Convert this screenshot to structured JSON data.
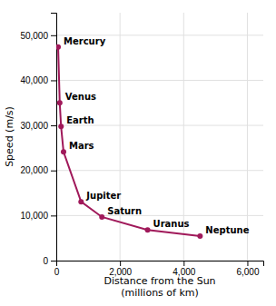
{
  "chart_data": {
    "type": "line",
    "xlabel": "Distance from the Sun\n(millions of km)",
    "ylabel": "Speed (m/s)",
    "x": [
      57.9,
      108.2,
      149.6,
      227.9,
      778.5,
      1432,
      2867,
      4515
    ],
    "series": [
      {
        "color": "#a0195a",
        "marker": "circle",
        "line_style": "solid",
        "values": [
          47400,
          35020,
          29780,
          24130,
          13070,
          9680,
          6800,
          5430
        ]
      }
    ],
    "annotations": [
      "Mercury",
      "Venus",
      "Earth",
      "Mars",
      "Jupiter",
      "Saturn",
      "Uranus",
      "Neptune"
    ],
    "xlim": [
      0,
      6500
    ],
    "ylim": [
      0,
      55000
    ],
    "xticks": [
      0,
      {
        "value": 2000,
        "label": "2,000"
      },
      {
        "value": 4000,
        "label": "4,000"
      },
      {
        "value": 6000,
        "label": "6,000"
      }
    ],
    "yticks": [
      0,
      {
        "value": 10000,
        "label": "10,000"
      },
      {
        "value": 20000,
        "label": "20,000"
      },
      {
        "value": 30000,
        "label": "30,000"
      },
      {
        "value": 40000,
        "label": "40,000"
      },
      {
        "value": 50000,
        "label": "50,000"
      }
    ],
    "grid": true
  }
}
